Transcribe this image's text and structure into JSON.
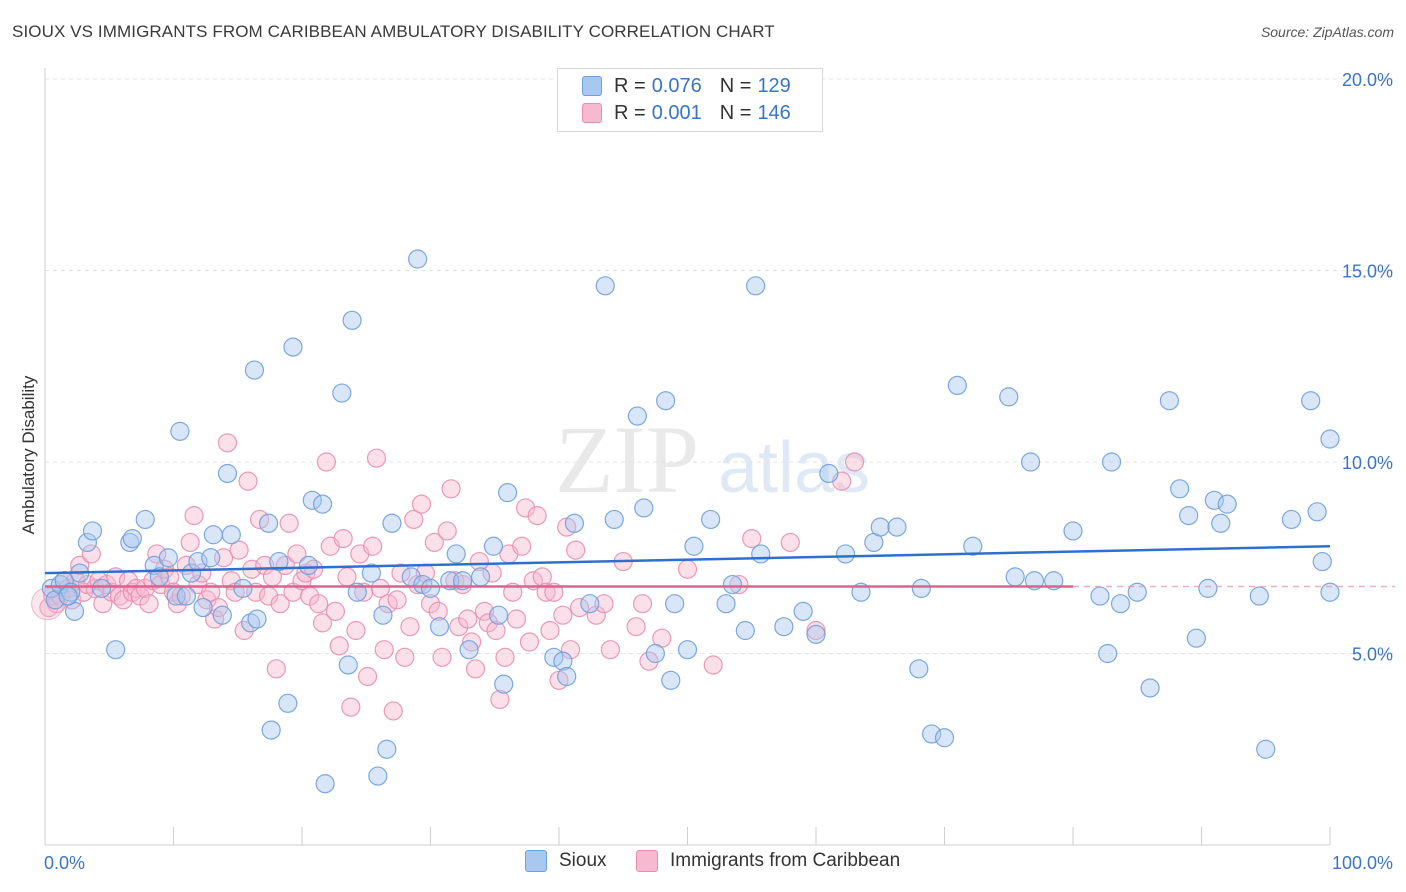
{
  "header": {
    "title": "SIOUX VS IMMIGRANTS FROM CARIBBEAN AMBULATORY DISABILITY CORRELATION CHART",
    "source": "Source: ZipAtlas.com"
  },
  "watermark": {
    "zip": "ZIP",
    "atlas": "atlas"
  },
  "legend_top": {
    "rows": [
      {
        "r_label": "R =",
        "r_value": "0.076",
        "n_label": "N =",
        "n_value": "129"
      },
      {
        "r_label": "R =",
        "r_value": "0.001",
        "n_label": "N =",
        "n_value": "146"
      }
    ]
  },
  "legend_bottom": {
    "series1": "Sioux",
    "series2": "Immigrants from Caribbean"
  },
  "colors": {
    "sioux_fill": "#a9c8f0",
    "sioux_stroke": "#6f9fdc",
    "sioux_line": "#2f6fd0",
    "carib_fill": "#f6b9cf",
    "carib_stroke": "#e88fb0",
    "carib_line": "#e0608f",
    "tick_text": "#3b74c6",
    "grid": "#e3e3e3"
  },
  "chart_data": {
    "type": "scatter",
    "title": "SIOUX VS IMMIGRANTS FROM CARIBBEAN AMBULATORY DISABILITY CORRELATION CHART",
    "xlabel": "",
    "ylabel": "Ambulatory Disability",
    "xlim": [
      0,
      100
    ],
    "ylim": [
      0,
      20
    ],
    "x_tick_labels": [
      "0.0%",
      "100.0%"
    ],
    "y_tick_labels": [
      "5.0%",
      "10.0%",
      "15.0%",
      "20.0%"
    ],
    "y_ticks": [
      5,
      10,
      15,
      20
    ],
    "grid": true,
    "legend_position": "top-center",
    "series": [
      {
        "name": "Sioux",
        "r": 0.076,
        "n": 129,
        "trend": {
          "x": [
            0,
            100
          ],
          "y": [
            7.1,
            7.8
          ]
        },
        "points": [
          [
            0.5,
            6.7
          ],
          [
            0.8,
            6.4
          ],
          [
            1.2,
            6.8
          ],
          [
            1.5,
            6.9
          ],
          [
            2.0,
            6.6
          ],
          [
            2.3,
            6.1
          ],
          [
            2.7,
            7.1
          ],
          [
            3.3,
            7.9
          ],
          [
            3.7,
            8.2
          ],
          [
            4.4,
            6.7
          ],
          [
            5.5,
            5.1
          ],
          [
            6.6,
            7.9
          ],
          [
            6.8,
            8.0
          ],
          [
            7.8,
            8.5
          ],
          [
            8.5,
            7.3
          ],
          [
            8.9,
            7.0
          ],
          [
            9.6,
            7.5
          ],
          [
            10.2,
            6.5
          ],
          [
            10.5,
            10.8
          ],
          [
            11.0,
            6.5
          ],
          [
            11.4,
            7.1
          ],
          [
            11.9,
            7.4
          ],
          [
            12.3,
            6.2
          ],
          [
            12.9,
            7.5
          ],
          [
            13.1,
            8.1
          ],
          [
            13.8,
            6.0
          ],
          [
            14.2,
            9.7
          ],
          [
            14.5,
            8.1
          ],
          [
            15.4,
            6.7
          ],
          [
            16.0,
            5.8
          ],
          [
            16.3,
            12.4
          ],
          [
            16.5,
            5.9
          ],
          [
            17.4,
            8.4
          ],
          [
            17.6,
            3.0
          ],
          [
            18.2,
            7.4
          ],
          [
            18.9,
            3.7
          ],
          [
            19.3,
            13.0
          ],
          [
            20.5,
            7.3
          ],
          [
            20.8,
            9.0
          ],
          [
            21.6,
            8.9
          ],
          [
            21.8,
            1.6
          ],
          [
            23.1,
            11.8
          ],
          [
            23.6,
            4.7
          ],
          [
            23.9,
            13.7
          ],
          [
            24.3,
            6.6
          ],
          [
            25.4,
            7.1
          ],
          [
            25.9,
            1.8
          ],
          [
            26.3,
            6.0
          ],
          [
            26.6,
            2.5
          ],
          [
            27.0,
            8.4
          ],
          [
            28.5,
            7.0
          ],
          [
            29.0,
            15.3
          ],
          [
            29.4,
            6.8
          ],
          [
            30.0,
            6.7
          ],
          [
            30.7,
            5.7
          ],
          [
            31.5,
            6.9
          ],
          [
            32.0,
            7.6
          ],
          [
            32.5,
            6.9
          ],
          [
            33.0,
            5.1
          ],
          [
            33.9,
            7.0
          ],
          [
            34.9,
            7.8
          ],
          [
            35.3,
            6.0
          ],
          [
            35.7,
            4.2
          ],
          [
            36.0,
            9.2
          ],
          [
            39.6,
            4.9
          ],
          [
            40.3,
            4.8
          ],
          [
            40.6,
            4.4
          ],
          [
            41.2,
            8.4
          ],
          [
            42.4,
            6.3
          ],
          [
            43.6,
            14.6
          ],
          [
            44.3,
            8.5
          ],
          [
            46.1,
            11.2
          ],
          [
            46.6,
            8.8
          ],
          [
            47.5,
            5.0
          ],
          [
            48.3,
            11.6
          ],
          [
            48.7,
            4.3
          ],
          [
            49.0,
            6.3
          ],
          [
            50.0,
            5.1
          ],
          [
            50.5,
            7.8
          ],
          [
            51.8,
            8.5
          ],
          [
            53.0,
            6.3
          ],
          [
            53.5,
            6.8
          ],
          [
            54.5,
            5.6
          ],
          [
            55.3,
            14.6
          ],
          [
            55.7,
            7.6
          ],
          [
            57.5,
            5.7
          ],
          [
            59.0,
            6.1
          ],
          [
            60.0,
            5.5
          ],
          [
            61.0,
            9.7
          ],
          [
            62.3,
            7.6
          ],
          [
            63.5,
            6.6
          ],
          [
            64.5,
            7.9
          ],
          [
            65.0,
            8.3
          ],
          [
            66.3,
            8.3
          ],
          [
            68.0,
            4.6
          ],
          [
            68.2,
            6.7
          ],
          [
            69.0,
            2.9
          ],
          [
            70.0,
            2.8
          ],
          [
            71.0,
            12.0
          ],
          [
            72.2,
            7.8
          ],
          [
            75.0,
            11.7
          ],
          [
            75.5,
            7.0
          ],
          [
            76.7,
            10.0
          ],
          [
            77.0,
            6.9
          ],
          [
            78.5,
            6.9
          ],
          [
            80.0,
            8.2
          ],
          [
            82.1,
            6.5
          ],
          [
            82.7,
            5.0
          ],
          [
            83.0,
            10.0
          ],
          [
            83.7,
            6.3
          ],
          [
            85.0,
            6.6
          ],
          [
            86.0,
            4.1
          ],
          [
            87.5,
            11.6
          ],
          [
            88.3,
            9.3
          ],
          [
            89.0,
            8.6
          ],
          [
            89.6,
            5.4
          ],
          [
            90.5,
            6.7
          ],
          [
            91.0,
            9.0
          ],
          [
            91.5,
            8.4
          ],
          [
            92.0,
            8.9
          ],
          [
            94.5,
            6.5
          ],
          [
            95.0,
            2.5
          ],
          [
            97.0,
            8.5
          ],
          [
            98.5,
            11.6
          ],
          [
            99.0,
            8.7
          ],
          [
            99.4,
            7.4
          ],
          [
            100.0,
            10.6
          ],
          [
            100.0,
            6.6
          ],
          [
            1.8,
            6.5
          ]
        ]
      },
      {
        "name": "Immigrants from Caribbean",
        "r": 0.001,
        "n": 146,
        "trend": {
          "x": [
            0,
            80
          ],
          "y": [
            6.75,
            6.75
          ]
        },
        "points": [
          [
            0.3,
            6.2
          ],
          [
            0.6,
            6.5
          ],
          [
            0.9,
            6.3
          ],
          [
            1.2,
            6.5
          ],
          [
            1.5,
            6.9
          ],
          [
            1.8,
            6.7
          ],
          [
            2.1,
            6.4
          ],
          [
            2.4,
            6.9
          ],
          [
            2.7,
            7.3
          ],
          [
            3.0,
            6.6
          ],
          [
            3.3,
            6.8
          ],
          [
            3.6,
            7.6
          ],
          [
            3.9,
            6.7
          ],
          [
            4.2,
            6.9
          ],
          [
            4.5,
            6.3
          ],
          [
            4.8,
            6.8
          ],
          [
            5.2,
            6.6
          ],
          [
            5.5,
            7.0
          ],
          [
            5.8,
            6.5
          ],
          [
            6.1,
            6.4
          ],
          [
            6.5,
            6.9
          ],
          [
            6.8,
            6.6
          ],
          [
            7.1,
            6.7
          ],
          [
            7.4,
            6.5
          ],
          [
            7.8,
            6.7
          ],
          [
            8.1,
            6.3
          ],
          [
            8.4,
            6.9
          ],
          [
            8.7,
            7.6
          ],
          [
            9.0,
            6.8
          ],
          [
            9.3,
            7.2
          ],
          [
            9.7,
            7.0
          ],
          [
            10.0,
            6.6
          ],
          [
            10.3,
            6.3
          ],
          [
            10.6,
            6.5
          ],
          [
            11.0,
            7.3
          ],
          [
            11.3,
            7.9
          ],
          [
            11.6,
            8.6
          ],
          [
            11.9,
            6.8
          ],
          [
            12.2,
            7.1
          ],
          [
            12.6,
            6.4
          ],
          [
            12.9,
            6.6
          ],
          [
            13.2,
            5.9
          ],
          [
            13.5,
            6.2
          ],
          [
            13.9,
            7.5
          ],
          [
            14.2,
            10.5
          ],
          [
            14.5,
            6.9
          ],
          [
            14.8,
            6.6
          ],
          [
            15.1,
            7.7
          ],
          [
            15.5,
            5.6
          ],
          [
            15.8,
            9.5
          ],
          [
            16.1,
            7.2
          ],
          [
            16.4,
            6.6
          ],
          [
            16.7,
            8.5
          ],
          [
            17.1,
            7.3
          ],
          [
            17.4,
            6.5
          ],
          [
            17.7,
            7.0
          ],
          [
            18.0,
            4.6
          ],
          [
            18.3,
            6.3
          ],
          [
            18.7,
            7.3
          ],
          [
            19.0,
            8.4
          ],
          [
            19.3,
            6.6
          ],
          [
            19.6,
            7.6
          ],
          [
            20.0,
            6.9
          ],
          [
            20.3,
            7.1
          ],
          [
            20.6,
            6.5
          ],
          [
            20.9,
            7.2
          ],
          [
            21.3,
            6.3
          ],
          [
            21.6,
            5.8
          ],
          [
            21.9,
            10.0
          ],
          [
            22.2,
            7.8
          ],
          [
            22.6,
            6.1
          ],
          [
            22.9,
            5.2
          ],
          [
            23.2,
            8.0
          ],
          [
            23.5,
            7.0
          ],
          [
            23.8,
            3.6
          ],
          [
            24.2,
            5.6
          ],
          [
            24.5,
            7.6
          ],
          [
            24.8,
            6.6
          ],
          [
            25.1,
            4.4
          ],
          [
            25.5,
            7.8
          ],
          [
            25.8,
            10.1
          ],
          [
            26.1,
            6.7
          ],
          [
            26.4,
            5.1
          ],
          [
            26.7,
            6.3
          ],
          [
            27.1,
            3.5
          ],
          [
            27.4,
            6.4
          ],
          [
            27.7,
            7.1
          ],
          [
            28.0,
            4.9
          ],
          [
            28.4,
            5.7
          ],
          [
            28.7,
            8.5
          ],
          [
            29.0,
            6.8
          ],
          [
            29.3,
            8.9
          ],
          [
            29.6,
            7.1
          ],
          [
            30.0,
            6.3
          ],
          [
            30.3,
            7.9
          ],
          [
            30.6,
            6.1
          ],
          [
            30.9,
            4.9
          ],
          [
            31.3,
            8.2
          ],
          [
            31.6,
            9.3
          ],
          [
            31.9,
            6.9
          ],
          [
            32.2,
            5.7
          ],
          [
            32.5,
            6.8
          ],
          [
            32.9,
            5.9
          ],
          [
            33.2,
            5.3
          ],
          [
            33.5,
            4.6
          ],
          [
            33.8,
            7.4
          ],
          [
            34.2,
            6.1
          ],
          [
            34.5,
            5.8
          ],
          [
            34.8,
            7.1
          ],
          [
            35.1,
            5.6
          ],
          [
            35.4,
            3.8
          ],
          [
            35.8,
            4.9
          ],
          [
            36.1,
            7.6
          ],
          [
            36.4,
            6.6
          ],
          [
            36.7,
            5.9
          ],
          [
            37.1,
            7.8
          ],
          [
            37.4,
            8.8
          ],
          [
            37.7,
            5.3
          ],
          [
            38.0,
            6.9
          ],
          [
            38.3,
            8.6
          ],
          [
            38.7,
            7.0
          ],
          [
            39.0,
            6.6
          ],
          [
            39.3,
            5.6
          ],
          [
            39.6,
            6.6
          ],
          [
            40.0,
            4.3
          ],
          [
            40.3,
            6.0
          ],
          [
            40.6,
            8.3
          ],
          [
            40.9,
            5.1
          ],
          [
            41.3,
            7.7
          ],
          [
            41.6,
            6.2
          ],
          [
            42.9,
            6.0
          ],
          [
            43.5,
            6.3
          ],
          [
            44.0,
            5.1
          ],
          [
            45.0,
            7.4
          ],
          [
            46.0,
            5.7
          ],
          [
            46.5,
            6.3
          ],
          [
            47.0,
            4.8
          ],
          [
            48.0,
            5.4
          ],
          [
            50.0,
            7.2
          ],
          [
            52.0,
            4.7
          ],
          [
            54.0,
            6.8
          ],
          [
            55.0,
            8.0
          ],
          [
            58.0,
            7.9
          ],
          [
            60.0,
            5.6
          ],
          [
            62.0,
            9.5
          ],
          [
            63.0,
            10.0
          ]
        ]
      }
    ]
  }
}
